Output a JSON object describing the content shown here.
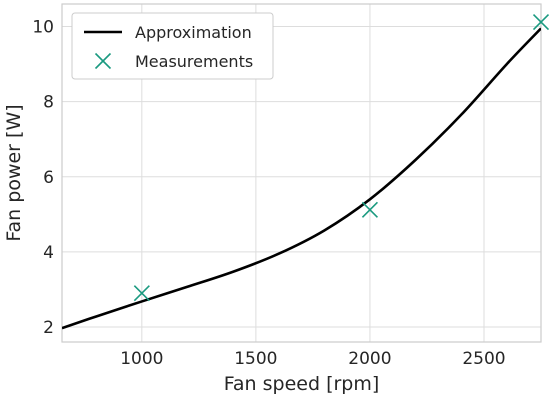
{
  "chart_data": {
    "type": "line",
    "xlabel": "Fan speed [rpm]",
    "ylabel": "Fan power [W]",
    "xlim": [
      650,
      2750
    ],
    "ylim": [
      1.6,
      10.6
    ],
    "x_ticks": [
      1000,
      1500,
      2000,
      2500
    ],
    "x_tick_labels": [
      "1000",
      "1500",
      "2000",
      "2500"
    ],
    "y_ticks": [
      2,
      4,
      6,
      8,
      10
    ],
    "y_tick_labels": [
      "2",
      "4",
      "6",
      "8",
      "10"
    ],
    "grid": true,
    "legend": {
      "position": "top-left"
    },
    "series": [
      {
        "name": "Approximation",
        "kind": "line",
        "color": "#000000",
        "x": [
          650,
          800,
          1000,
          1200,
          1400,
          1600,
          1800,
          2000,
          2200,
          2400,
          2600,
          2750
        ],
        "y": [
          1.97,
          2.28,
          2.68,
          3.07,
          3.47,
          3.95,
          4.57,
          5.4,
          6.45,
          7.65,
          9.0,
          9.95
        ]
      },
      {
        "name": "Measurements",
        "kind": "scatter",
        "marker": "x",
        "color": "#1a9a80",
        "x": [
          1000,
          2000,
          2750
        ],
        "y": [
          2.9,
          5.12,
          10.12
        ]
      }
    ]
  }
}
